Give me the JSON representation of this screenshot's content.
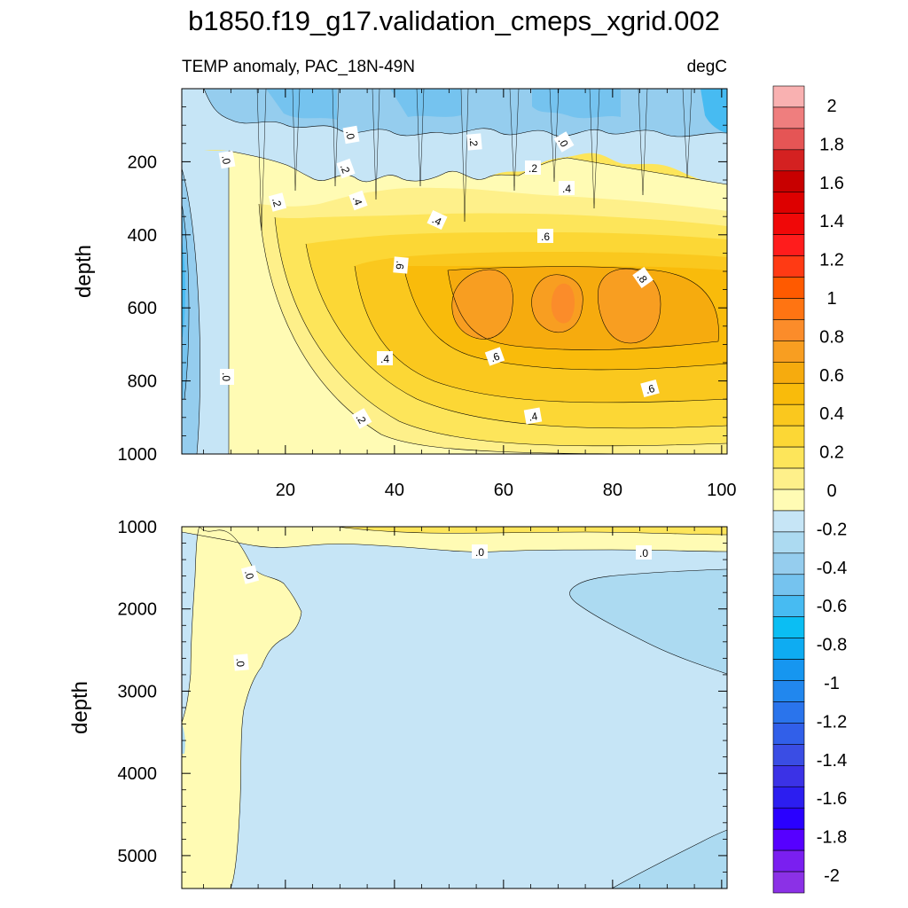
{
  "figure": {
    "title": "b1850.f19_g17.validation_cmeps_xgrid.002",
    "subtitle_left": "TEMP anomaly, PAC_18N-49N",
    "subtitle_right": "degC"
  },
  "chart_data": [
    {
      "type": "contour",
      "panel": "upper",
      "ylabel": "depth",
      "xlim": [
        1,
        101
      ],
      "ylim": [
        1000,
        0
      ],
      "x_ticks": [
        "20",
        "40",
        "60",
        "80",
        "100"
      ],
      "y_ticks": [
        "200",
        "400",
        "600",
        "800",
        "1000"
      ],
      "contour_interval": 0.1,
      "contour_labels": [
        ".0",
        ".0",
        ".0",
        ".2",
        ".2",
        ".2",
        ".2",
        ".4",
        ".4",
        ".4",
        ".6",
        ".6",
        ".8",
        ".6",
        ".6",
        ".4",
        ".4",
        ".2",
        ".0",
        ".2"
      ],
      "max_region": {
        "x_range": [
          50,
          88
        ],
        "depth_range": [
          480,
          680
        ],
        "value": 0.8
      }
    },
    {
      "type": "contour",
      "panel": "lower",
      "ylabel": "depth",
      "xlim": [
        1,
        101
      ],
      "ylim": [
        5400,
        1000
      ],
      "y_ticks": [
        "1000",
        "2000",
        "3000",
        "4000",
        "5000"
      ],
      "contour_interval": 0.1,
      "contour_labels": [
        ".0",
        ".0",
        ".0",
        ".0"
      ]
    }
  ],
  "colorbar": {
    "labels": [
      "2",
      "1.8",
      "1.6",
      "1.4",
      "1.2",
      "1",
      "0.8",
      "0.6",
      "0.4",
      "0.2",
      "0",
      "-0.2",
      "-0.4",
      "-0.6",
      "-0.8",
      "-1",
      "-1.2",
      "-1.4",
      "-1.6",
      "-1.8",
      "-2"
    ],
    "colors": [
      "#f9b1b1",
      "#ef7e7e",
      "#e55555",
      "#d42121",
      "#c80000",
      "#dd0000",
      "#f00808",
      "#ff1c1c",
      "#ff3a14",
      "#ff5a00",
      "#ff7412",
      "#fb8c2a",
      "#f89e21",
      "#f6ab0e",
      "#f9bb0b",
      "#fac81e",
      "#fcd735",
      "#fde55a",
      "#fef08a",
      "#fffbb4",
      "#c6e5f6",
      "#acdaf1",
      "#95cdee",
      "#75c3ef",
      "#47bbf2",
      "#0bbef3",
      "#0eacf2",
      "#1696f0",
      "#2187ee",
      "#2a74ec",
      "#315fe9",
      "#3a4de4",
      "#3b32e6",
      "#2c1ef0",
      "#2a00ff",
      "#5600ff",
      "#7a1ff0",
      "#8b31e6"
    ]
  }
}
